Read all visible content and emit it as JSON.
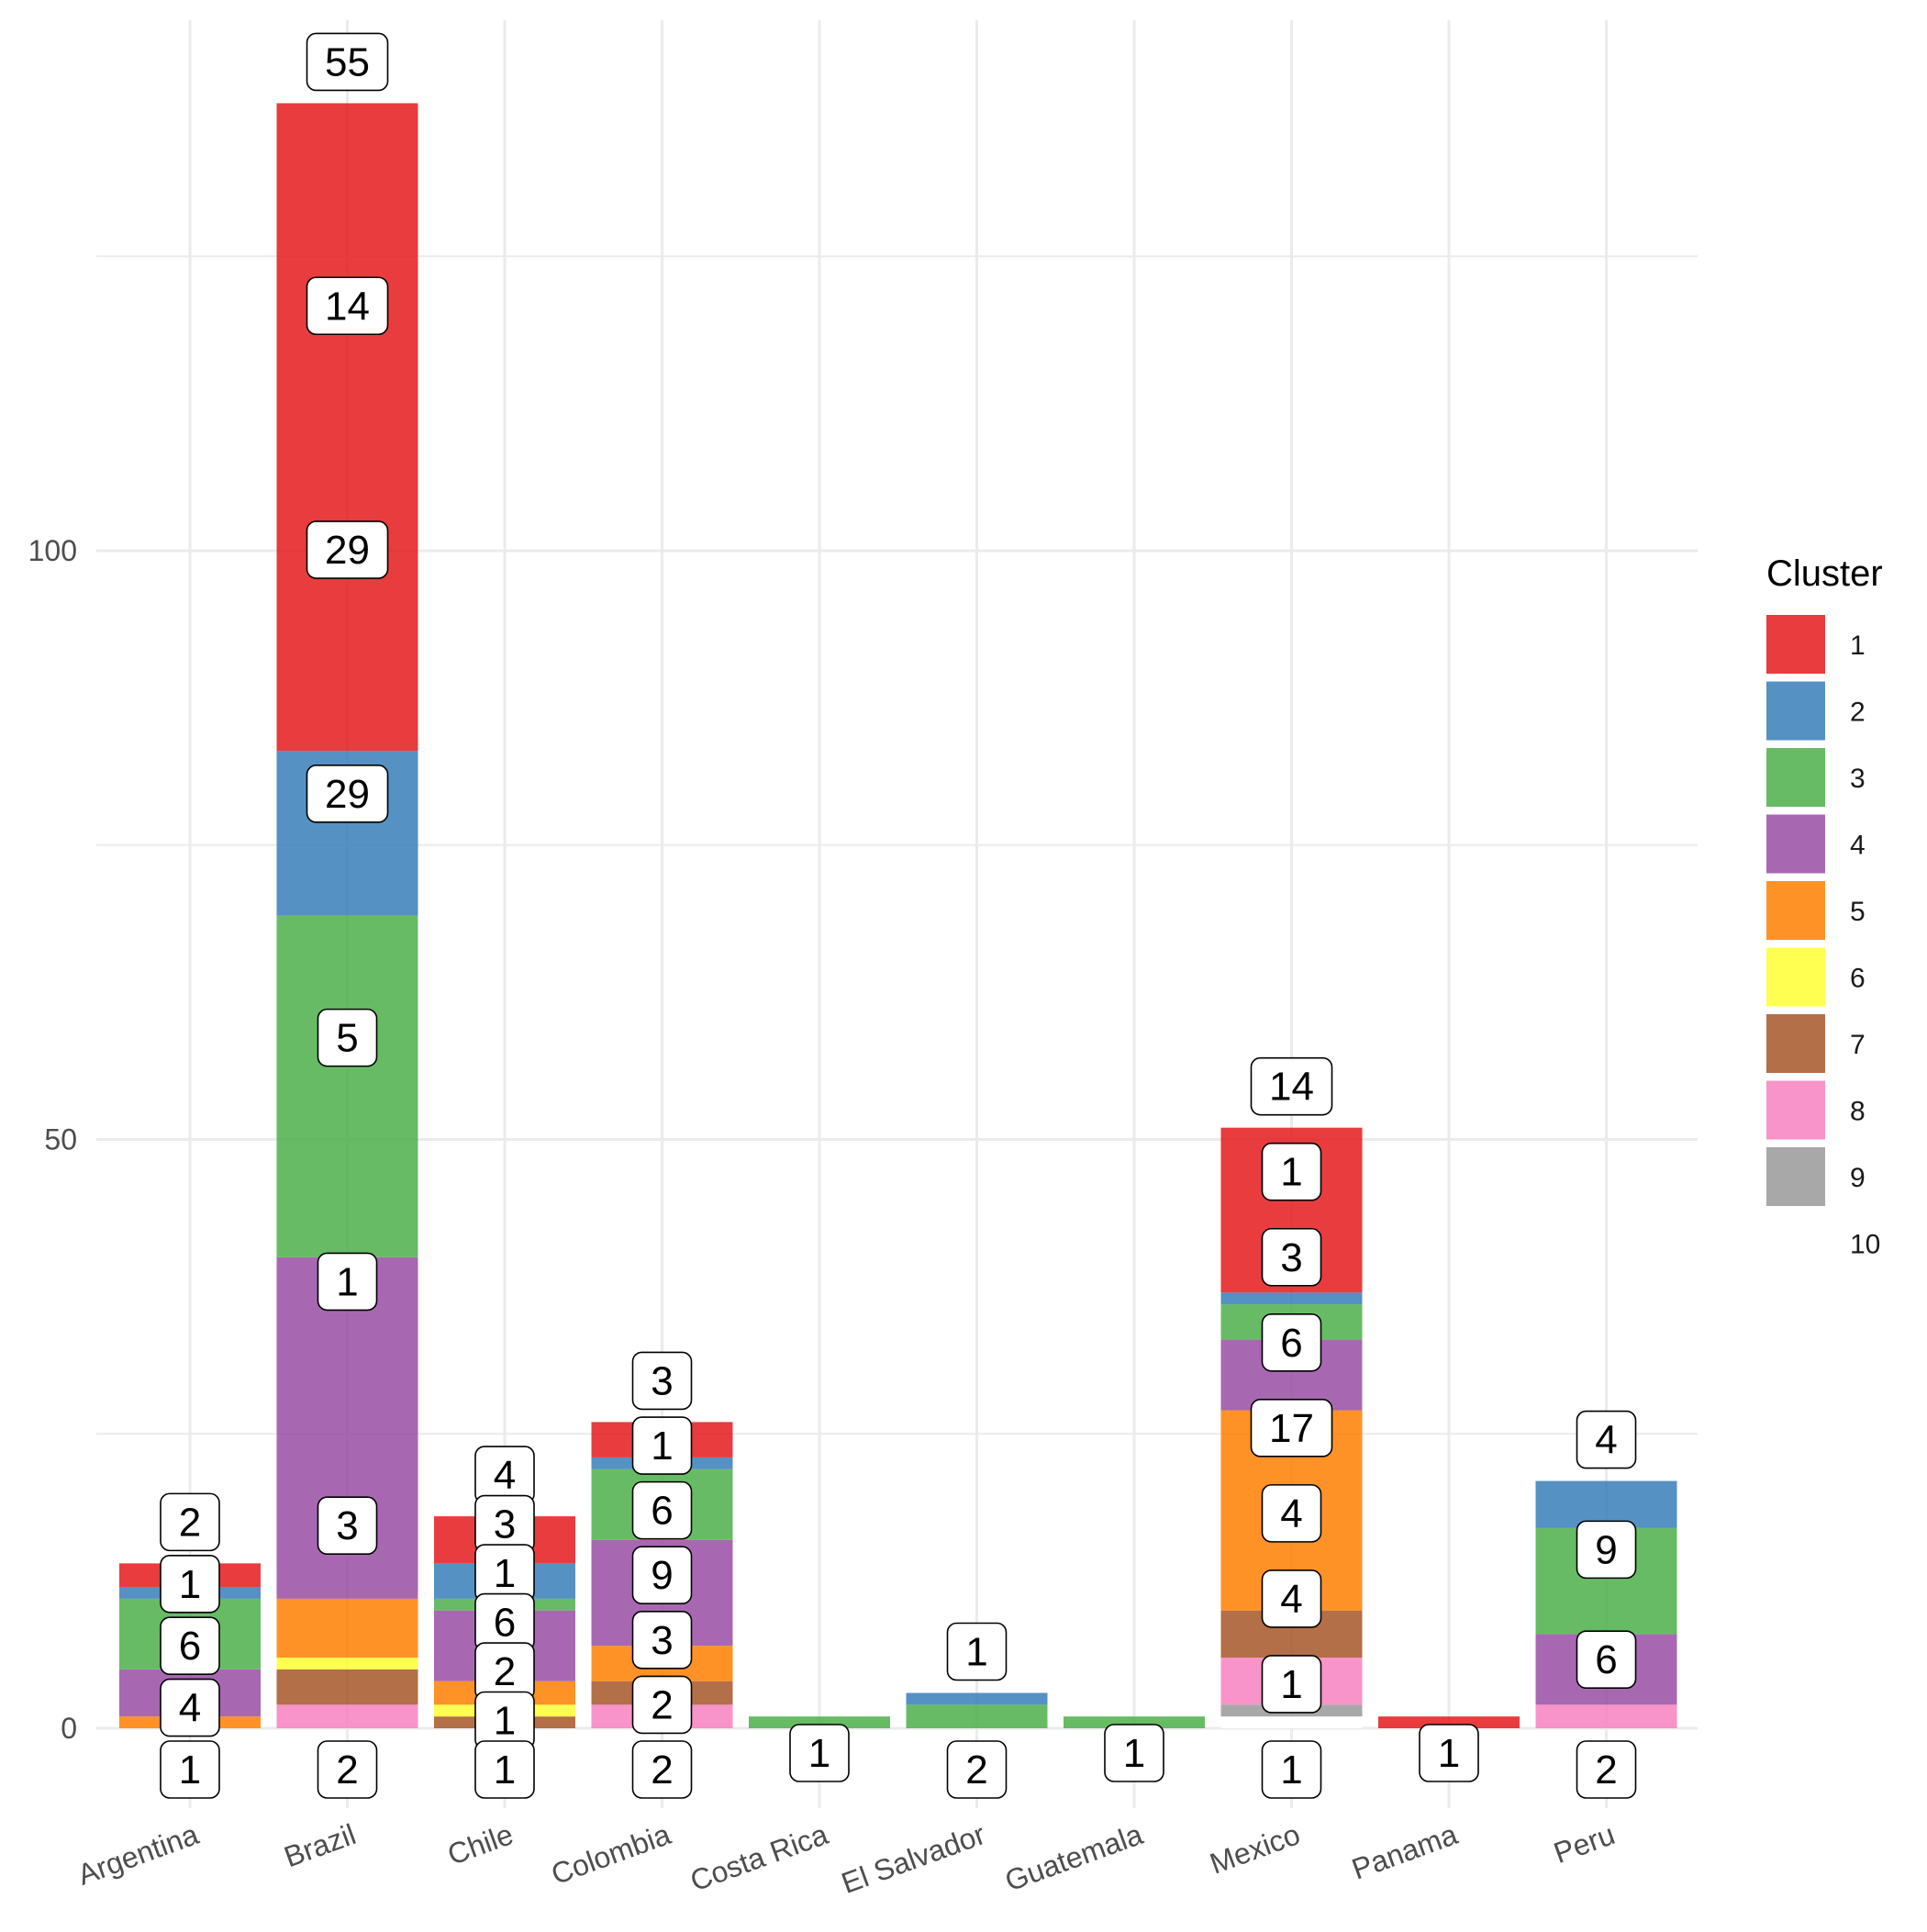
{
  "chart_data": {
    "type": "bar",
    "stacked": true,
    "categories": [
      "Argentina",
      "Brazil",
      "Chile",
      "Colombia",
      "Costa Rica",
      "El Salvador",
      "Guatemala",
      "Mexico",
      "Panama",
      "Peru"
    ],
    "y_ticks": [
      0,
      50,
      100
    ],
    "ylim": [
      -7,
      140
    ],
    "grid": true,
    "legend": {
      "title": "Cluster",
      "position": "right",
      "entries": [
        {
          "label": "1",
          "color": "#E41A1C"
        },
        {
          "label": "2",
          "color": "#377EB8"
        },
        {
          "label": "3",
          "color": "#4DAF4A"
        },
        {
          "label": "4",
          "color": "#984EA3"
        },
        {
          "label": "5",
          "color": "#FF7F00"
        },
        {
          "label": "6",
          "color": "#FFFF33"
        },
        {
          "label": "7",
          "color": "#A65628"
        },
        {
          "label": "8",
          "color": "#F781BF"
        },
        {
          "label": "9",
          "color": "#999999"
        },
        {
          "label": "10",
          "color": "#FFFFFF"
        }
      ]
    },
    "stack_order": [
      "10",
      "9",
      "8",
      "7",
      "6",
      "5",
      "4",
      "3",
      "2",
      "1"
    ],
    "series": [
      {
        "name": "1",
        "values": [
          2,
          55,
          4,
          3,
          0,
          0,
          0,
          14,
          1,
          0
        ]
      },
      {
        "name": "2",
        "values": [
          1,
          14,
          3,
          1,
          0,
          1,
          0,
          1,
          0,
          4
        ]
      },
      {
        "name": "3",
        "values": [
          6,
          29,
          1,
          6,
          1,
          2,
          1,
          3,
          0,
          9
        ]
      },
      {
        "name": "4",
        "values": [
          4,
          29,
          6,
          9,
          0,
          0,
          0,
          6,
          0,
          6
        ]
      },
      {
        "name": "5",
        "values": [
          1,
          5,
          2,
          3,
          0,
          0,
          0,
          17,
          0,
          0
        ]
      },
      {
        "name": "6",
        "values": [
          0,
          1,
          1,
          0,
          0,
          0,
          0,
          0,
          0,
          0
        ]
      },
      {
        "name": "7",
        "values": [
          0,
          3,
          1,
          2,
          0,
          0,
          0,
          4,
          0,
          0
        ]
      },
      {
        "name": "8",
        "values": [
          0,
          2,
          0,
          2,
          0,
          0,
          0,
          4,
          0,
          2
        ]
      },
      {
        "name": "9",
        "values": [
          0,
          0,
          0,
          0,
          0,
          0,
          0,
          1,
          0,
          0
        ]
      },
      {
        "name": "10",
        "values": [
          0,
          0,
          0,
          0,
          0,
          0,
          0,
          1,
          0,
          0
        ]
      }
    ],
    "data_labels": [
      {
        "category": "Argentina",
        "values": [
          "2",
          "1",
          "6",
          "4",
          "1"
        ]
      },
      {
        "category": "Brazil",
        "values": [
          "55",
          "14",
          "29",
          "29",
          "5",
          "1",
          "3",
          "2"
        ]
      },
      {
        "category": "Chile",
        "values": [
          "4",
          "3",
          "1",
          "6",
          "2",
          "1",
          "1"
        ]
      },
      {
        "category": "Colombia",
        "values": [
          "3",
          "1",
          "6",
          "9",
          "3",
          "2",
          "2"
        ]
      },
      {
        "category": "Costa Rica",
        "values": [
          "1"
        ]
      },
      {
        "category": "El Salvador",
        "values": [
          "1",
          "2"
        ]
      },
      {
        "category": "Guatemala",
        "values": [
          "1"
        ]
      },
      {
        "category": "Mexico",
        "values": [
          "14",
          "1",
          "3",
          "6",
          "17",
          "4",
          "4",
          "1",
          "1"
        ]
      },
      {
        "category": "Panama",
        "values": [
          "1"
        ]
      },
      {
        "category": "Peru",
        "values": [
          "4",
          "9",
          "6",
          "2"
        ]
      }
    ]
  }
}
